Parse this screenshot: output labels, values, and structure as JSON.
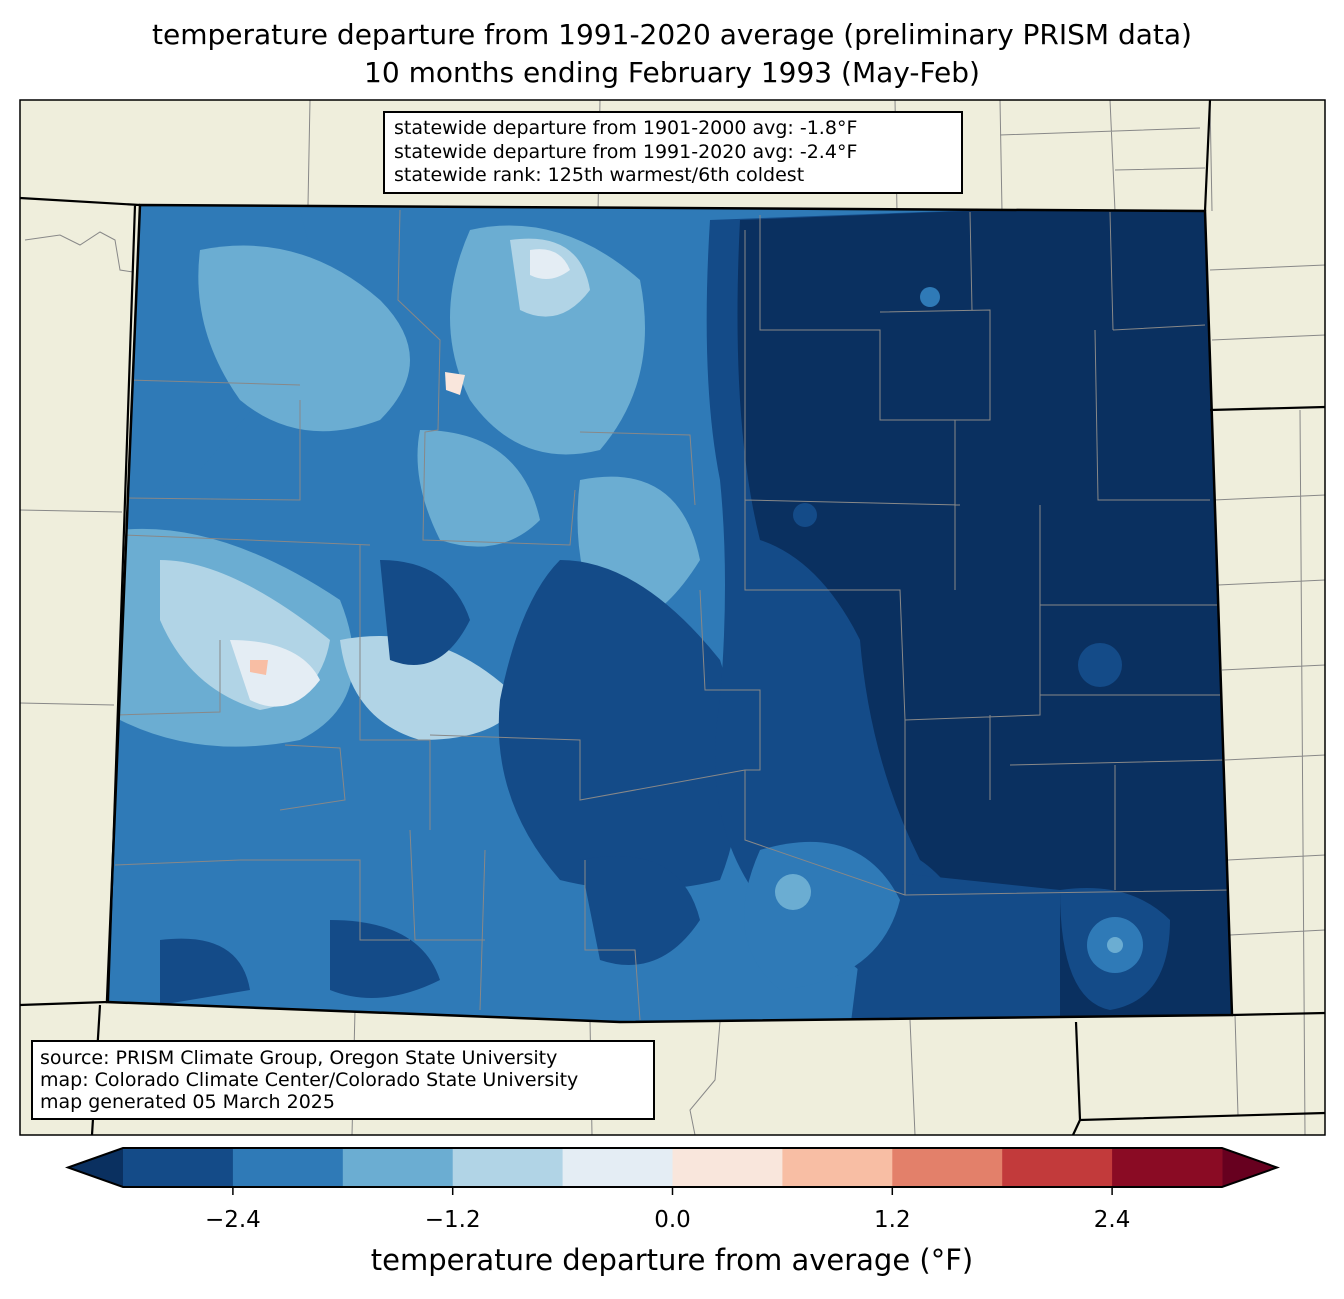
{
  "title": {
    "line1": "temperature departure from 1991-2020 average (preliminary PRISM data)",
    "line2": "10 months ending February 1993 (May-Feb)"
  },
  "stats_box": {
    "line1": "statewide departure from 1901-2000 avg: -1.8°F",
    "line2": "statewide departure from 1991-2020 avg: -2.4°F",
    "line3": "statewide rank: 125th warmest/6th coldest"
  },
  "source_box": {
    "line1": "source: PRISM Climate Group, Oregon State University",
    "line2": "map: Colorado Climate Center/Colorado State University",
    "line3": "map generated 05 March 2025"
  },
  "colorbar": {
    "label": "temperature departure from average (°F)",
    "bounds": [
      -3.0,
      -2.4,
      -1.8,
      -1.2,
      -0.6,
      0.0,
      0.6,
      1.2,
      1.8,
      2.4,
      3.0
    ],
    "colors": [
      "#144b88",
      "#2f7ab7",
      "#6badd2",
      "#b1d4e6",
      "#e4edf4",
      "#f9e6dc",
      "#f8bea4",
      "#e3806a",
      "#c23a3b",
      "#8a0b24"
    ],
    "under_color": "#0a3060",
    "over_color": "#67001f",
    "ticks": [
      "−2.4",
      "−1.2",
      "0.0",
      "1.2",
      "2.4"
    ],
    "tick_values": [
      -2.4,
      -1.2,
      0.0,
      1.2,
      2.4
    ]
  },
  "colors": {
    "land_background": "#efeedc"
  }
}
